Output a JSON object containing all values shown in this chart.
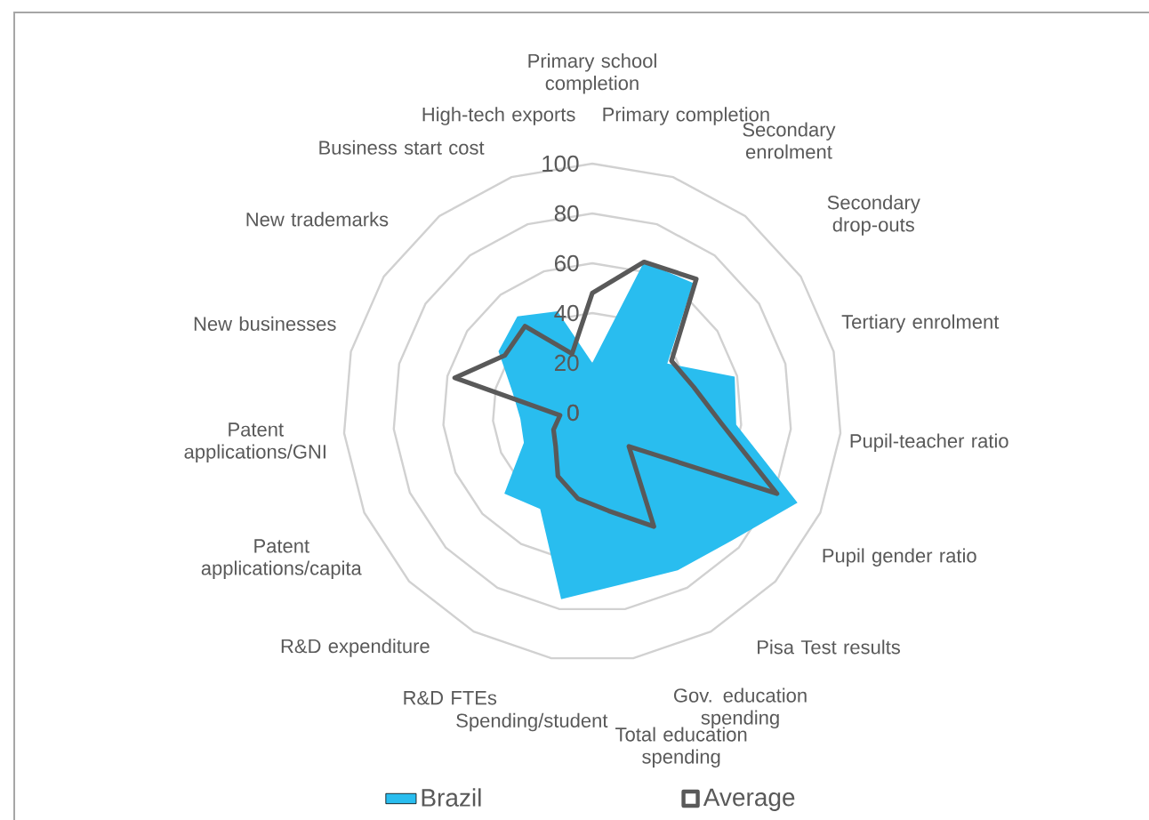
{
  "chart_data": {
    "type": "radar",
    "categories": [
      "Primary school completion",
      "Primary completion",
      "Secondary enrolment",
      "Secondary drop-outs",
      "Tertiary enrolment",
      "Pupil-teacher ratio",
      "Pupil gender ratio",
      "Pisa Test results",
      "Gov. education spending",
      "Total education spending",
      "Spending/student",
      "R&D FTEs",
      "R&D expenditure",
      "Patent applications/capita",
      "Patent applications/GNI",
      "New businesses",
      "New trademarks",
      "Business start cost",
      "High-tech exports"
    ],
    "series": [
      {
        "name": "Brazil",
        "color": "#29bdef",
        "values": [
          20,
          64,
          66,
          36,
          59,
          58,
          90,
          76,
          72,
          70,
          76,
          44,
          48,
          30,
          29,
          33,
          45,
          49,
          43
        ]
      },
      {
        "name": "Average",
        "color": "#595959",
        "values": [
          48,
          64,
          68,
          38,
          42,
          52,
          81,
          20,
          52,
          40,
          35,
          29,
          20,
          17,
          13,
          57,
          42,
          44,
          25
        ]
      }
    ],
    "ylim": [
      0,
      100
    ],
    "yticks": [
      0,
      20,
      40,
      60,
      80,
      100
    ],
    "grid": true,
    "legend": "bottom"
  }
}
